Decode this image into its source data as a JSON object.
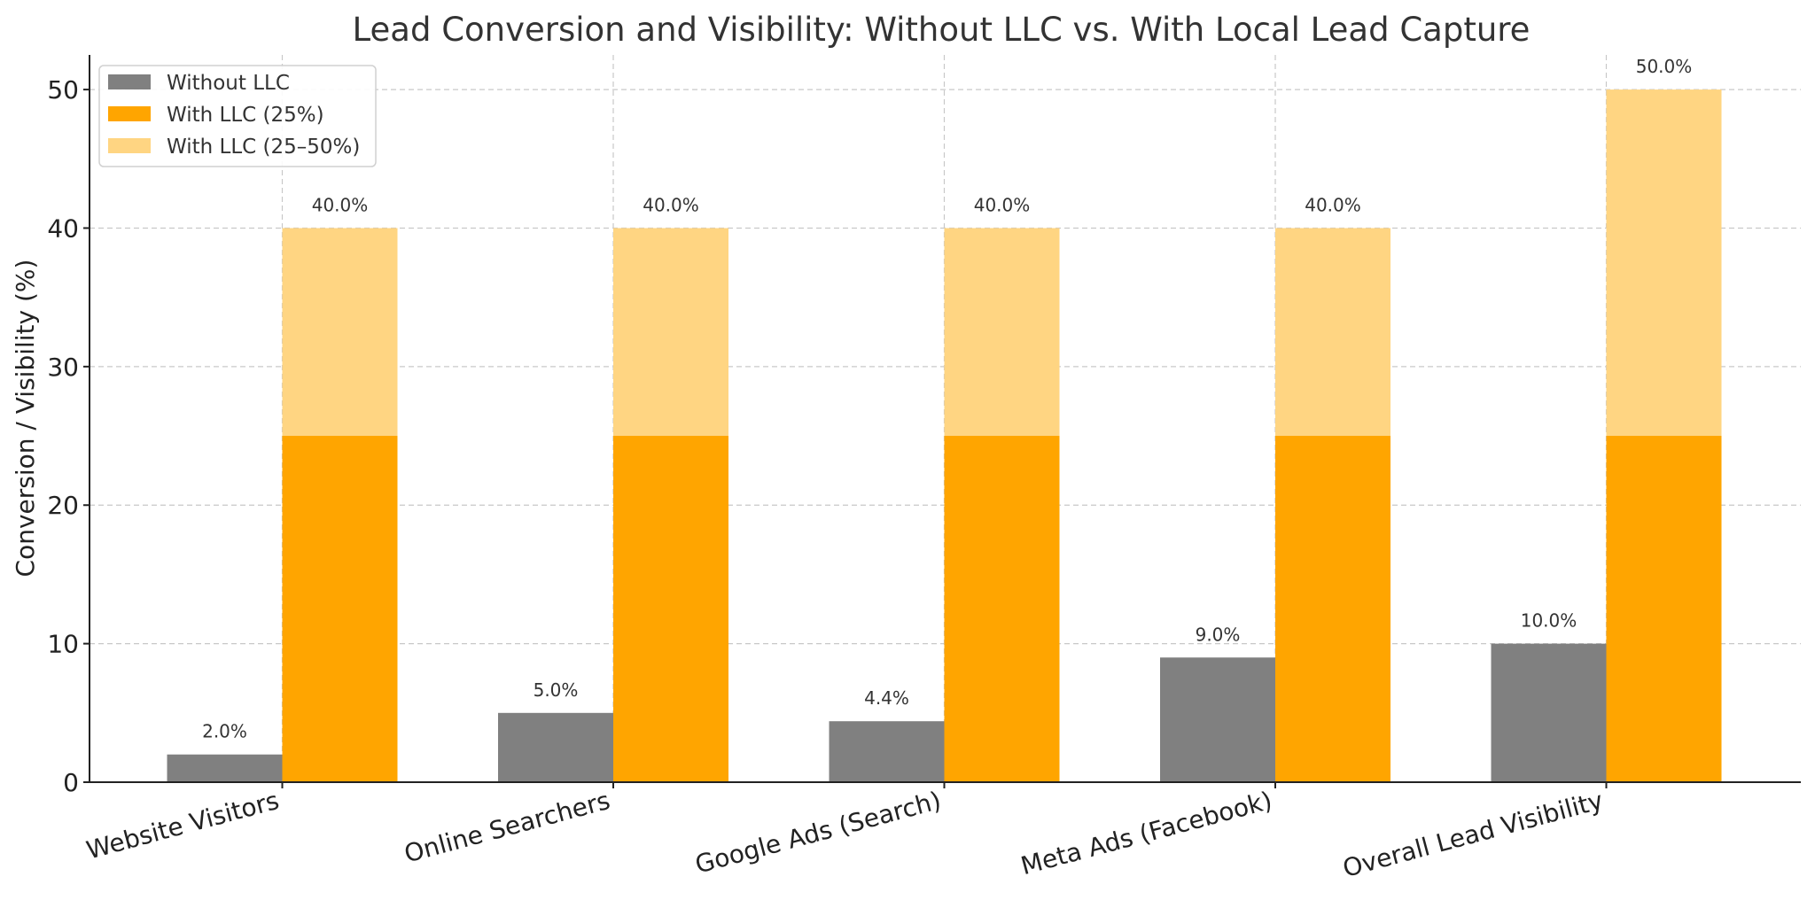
{
  "chart_data": {
    "type": "bar",
    "title": "Lead Conversion and Visibility: Without LLC vs. With Local Lead Capture",
    "xlabel": "",
    "ylabel": "Conversion / Visibility (%)",
    "ylim": [
      0,
      52.5
    ],
    "yticks": [
      0,
      10,
      20,
      30,
      40,
      50
    ],
    "grid": true,
    "legend_position": "top-left",
    "categories": [
      "Website Visitors",
      "Online Searchers",
      "Google Ads (Search)",
      "Meta Ads (Facebook)",
      "Overall Lead Visibility"
    ],
    "series": [
      {
        "name": "Without LLC",
        "color": "#808080",
        "values": [
          2.0,
          5.0,
          4.4,
          9.0,
          10.0
        ],
        "labels": [
          "2.0%",
          "5.0%",
          "4.4%",
          "9.0%",
          "10.0%"
        ]
      },
      {
        "name": "With LLC (25%)",
        "color": "#FFA500",
        "values": [
          25,
          25,
          25,
          25,
          25
        ]
      },
      {
        "name": "With LLC (25–50%)",
        "color": "#FFD582",
        "values": [
          40,
          40,
          40,
          40,
          50
        ],
        "labels": [
          "40.0%",
          "40.0%",
          "40.0%",
          "40.0%",
          "50.0%"
        ]
      }
    ]
  }
}
